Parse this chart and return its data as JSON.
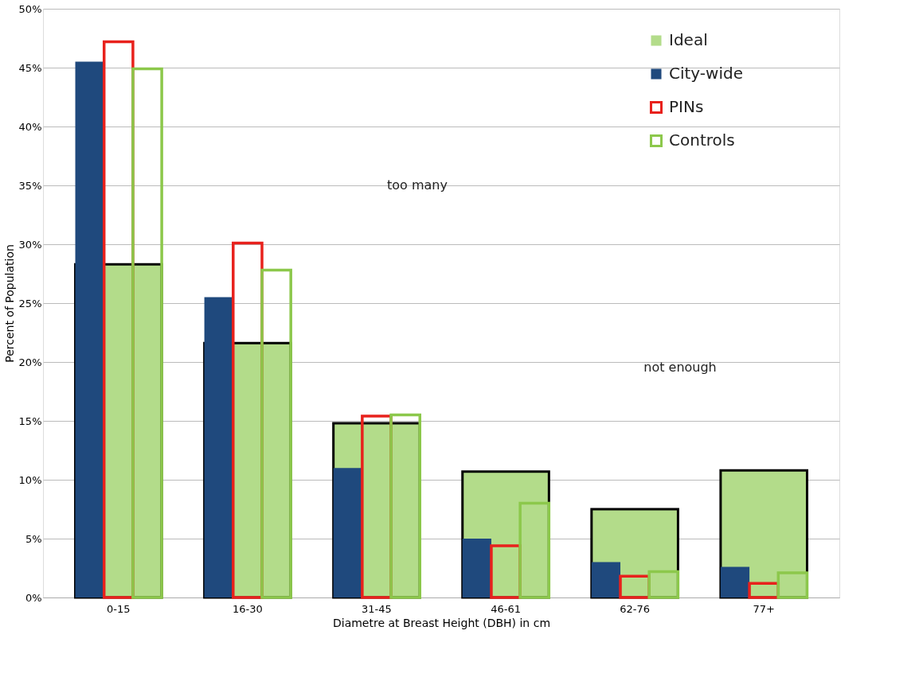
{
  "chart_data": {
    "type": "bar",
    "xlabel": "Diametre at Breast Height (DBH) in cm",
    "ylabel": "Percent of Population",
    "categories": [
      "0-15",
      "16-30",
      "31-45",
      "46-61",
      "62-76",
      "77+"
    ],
    "series": [
      {
        "name": "Ideal",
        "color": "#b3dc8a",
        "values": [
          28.3,
          21.6,
          14.8,
          10.7,
          7.5,
          10.8
        ]
      },
      {
        "name": "City-wide",
        "color": "#1f497d",
        "values": [
          45.5,
          25.5,
          11.0,
          5.0,
          3.0,
          2.6
        ]
      },
      {
        "name": "PINs",
        "color": "#e8211c",
        "values": [
          47.2,
          30.1,
          15.4,
          4.4,
          1.8,
          1.2
        ]
      },
      {
        "name": "Controls",
        "color": "#8cc84b",
        "values": [
          44.9,
          27.8,
          15.5,
          8.0,
          2.2,
          2.1
        ]
      }
    ],
    "ylim": [
      0,
      50
    ],
    "yticks": [
      {
        "value": 0,
        "label": "0%"
      },
      {
        "value": 5,
        "label": "5%"
      },
      {
        "value": 10,
        "label": "10%"
      },
      {
        "value": 15,
        "label": "15%"
      },
      {
        "value": 20,
        "label": "20%"
      },
      {
        "value": 25,
        "label": "25%"
      },
      {
        "value": 30,
        "label": "30%"
      },
      {
        "value": 35,
        "label": "35%"
      },
      {
        "value": 40,
        "label": "40%"
      },
      {
        "value": 45,
        "label": "45%"
      },
      {
        "value": 50,
        "label": "50%"
      }
    ],
    "grid": "y",
    "legend": "top right",
    "annotations": [
      "too many",
      "not enough"
    ]
  }
}
